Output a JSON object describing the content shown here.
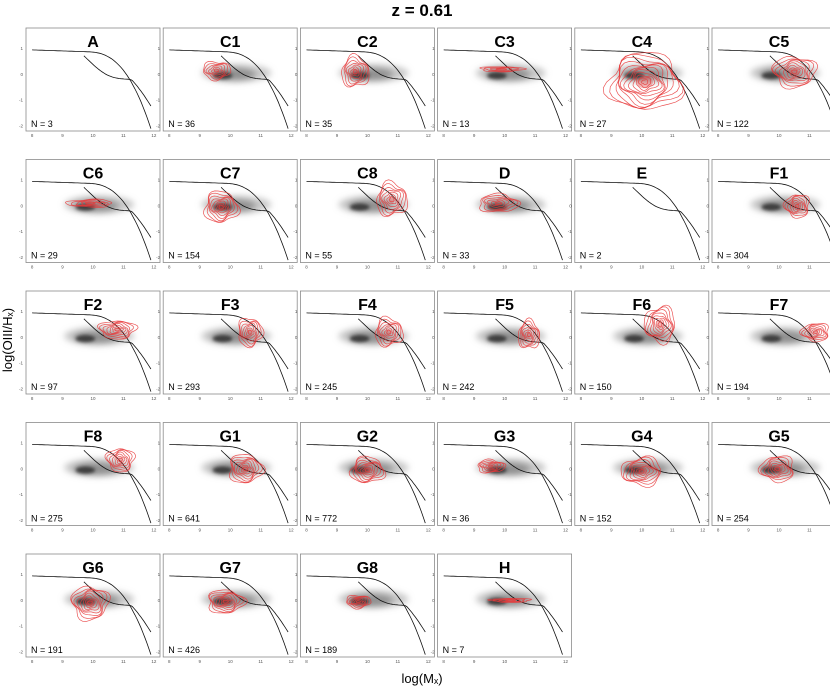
{
  "figure": {
    "title": "z = 0.61",
    "xlabel": "log(Mₓ)",
    "ylabel": "log(OIII/Hₓ)"
  },
  "chart_data": {
    "type": "contour",
    "title": "z = 0.61",
    "xlabel": "log(Mₓ)",
    "ylabel": "log(OIII/Hₓ)",
    "x_ticks": [
      "8",
      "9",
      "10",
      "11",
      "12"
    ],
    "y_ticks": [
      "1",
      "0",
      "-1",
      "-2"
    ],
    "xlim": [
      7.8,
      12.2
    ],
    "ylim": [
      -2.2,
      1.8
    ],
    "background_color": "#333333",
    "contour_color": "#e8383a",
    "panels": [
      {
        "label": "A",
        "n": "N = 3",
        "cx": null,
        "cy": null,
        "sx": 0,
        "sy": 0,
        "levels": 0
      },
      {
        "label": "C1",
        "n": "N = 36",
        "cx": 9.55,
        "cy": 0.15,
        "sx": 0.45,
        "sy": 0.35,
        "levels": 6
      },
      {
        "label": "C2",
        "n": "N = 35",
        "cx": 9.6,
        "cy": 0.1,
        "sx": 0.45,
        "sy": 0.6,
        "levels": 7
      },
      {
        "label": "C3",
        "n": "N = 13",
        "cx": 9.9,
        "cy": 0.2,
        "sx": 0.7,
        "sy": 0.1,
        "levels": 4
      },
      {
        "label": "C4",
        "n": "N = 27",
        "cx": 10.1,
        "cy": -0.3,
        "sx": 1.2,
        "sy": 1.1,
        "levels": 12
      },
      {
        "label": "C5",
        "n": "N = 122",
        "cx": 10.5,
        "cy": 0.1,
        "sx": 0.7,
        "sy": 0.6,
        "levels": 8
      },
      {
        "label": "C6",
        "n": "N = 29",
        "cx": 9.9,
        "cy": 0.1,
        "sx": 0.75,
        "sy": 0.15,
        "levels": 5
      },
      {
        "label": "C7",
        "n": "N = 154",
        "cx": 9.7,
        "cy": -0.05,
        "sx": 0.55,
        "sy": 0.6,
        "levels": 8
      },
      {
        "label": "C8",
        "n": "N = 55",
        "cx": 10.8,
        "cy": 0.25,
        "sx": 0.5,
        "sy": 0.65,
        "levels": 7
      },
      {
        "label": "D",
        "n": "N = 33",
        "cx": 9.8,
        "cy": 0.1,
        "sx": 0.65,
        "sy": 0.35,
        "levels": 6
      },
      {
        "label": "E",
        "n": "N = 2",
        "cx": null,
        "cy": null,
        "sx": 0,
        "sy": 0,
        "levels": 0
      },
      {
        "label": "F1",
        "n": "N = 304",
        "cx": 10.6,
        "cy": 0.0,
        "sx": 0.4,
        "sy": 0.45,
        "levels": 7
      },
      {
        "label": "F2",
        "n": "N = 97",
        "cx": 10.8,
        "cy": 0.3,
        "sx": 0.6,
        "sy": 0.35,
        "levels": 7
      },
      {
        "label": "F3",
        "n": "N = 293",
        "cx": 10.65,
        "cy": 0.2,
        "sx": 0.4,
        "sy": 0.55,
        "levels": 7
      },
      {
        "label": "F4",
        "n": "N = 245",
        "cx": 10.7,
        "cy": 0.2,
        "sx": 0.45,
        "sy": 0.55,
        "levels": 7
      },
      {
        "label": "F5",
        "n": "N = 242",
        "cx": 10.8,
        "cy": 0.1,
        "sx": 0.35,
        "sy": 0.55,
        "levels": 7
      },
      {
        "label": "F6",
        "n": "N = 150",
        "cx": 10.6,
        "cy": 0.5,
        "sx": 0.5,
        "sy": 0.7,
        "levels": 8
      },
      {
        "label": "F7",
        "n": "N = 194",
        "cx": 11.2,
        "cy": 0.2,
        "sx": 0.45,
        "sy": 0.35,
        "levels": 7
      },
      {
        "label": "F8",
        "n": "N = 275",
        "cx": 10.9,
        "cy": 0.35,
        "sx": 0.45,
        "sy": 0.45,
        "levels": 7
      },
      {
        "label": "G1",
        "n": "N = 641",
        "cx": 10.5,
        "cy": 0.0,
        "sx": 0.55,
        "sy": 0.55,
        "levels": 8
      },
      {
        "label": "G2",
        "n": "N = 772",
        "cx": 10.0,
        "cy": -0.05,
        "sx": 0.55,
        "sy": 0.5,
        "levels": 8
      },
      {
        "label": "G3",
        "n": "N = 36",
        "cx": 9.55,
        "cy": 0.1,
        "sx": 0.45,
        "sy": 0.25,
        "levels": 6
      },
      {
        "label": "G4",
        "n": "N = 152",
        "cx": 10.0,
        "cy": -0.1,
        "sx": 0.65,
        "sy": 0.55,
        "levels": 8
      },
      {
        "label": "G5",
        "n": "N = 254",
        "cx": 9.95,
        "cy": 0.0,
        "sx": 0.55,
        "sy": 0.5,
        "levels": 7
      },
      {
        "label": "G6",
        "n": "N = 191",
        "cx": 9.9,
        "cy": -0.1,
        "sx": 0.6,
        "sy": 0.65,
        "levels": 8
      },
      {
        "label": "G7",
        "n": "N = 426",
        "cx": 9.85,
        "cy": -0.05,
        "sx": 0.6,
        "sy": 0.45,
        "levels": 8
      },
      {
        "label": "G8",
        "n": "N = 189",
        "cx": 9.7,
        "cy": -0.05,
        "sx": 0.4,
        "sy": 0.25,
        "levels": 6
      },
      {
        "label": "H",
        "n": "N = 7",
        "cx": 10.2,
        "cy": 0.0,
        "sx": 0.65,
        "sy": 0.08,
        "levels": 4
      }
    ]
  }
}
